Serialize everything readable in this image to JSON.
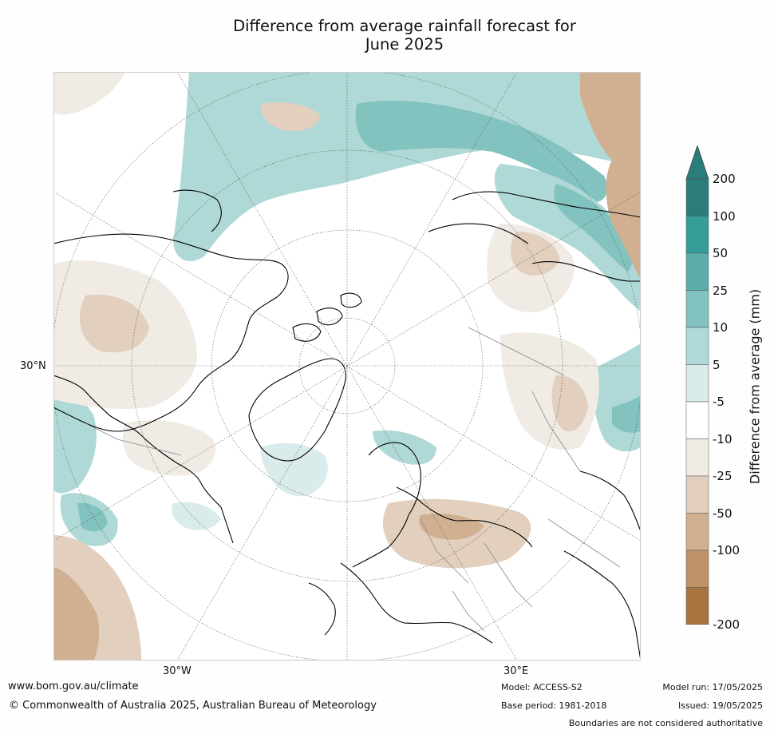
{
  "title_line1": "Difference from average rainfall forecast for",
  "title_line2": "June 2025",
  "map": {
    "graticule_labels": {
      "lat_left": "30°N",
      "lon_bottom_left": "30°W",
      "lon_bottom_right": "30°E"
    }
  },
  "legend": {
    "label": "Difference from average (mm)",
    "bins": [
      {
        "tick": "200",
        "color": "#2a7d78"
      },
      {
        "tick": "100",
        "color": "#359c98"
      },
      {
        "tick": "50",
        "color": "#5aadaa"
      },
      {
        "tick": "25",
        "color": "#82c2bf"
      },
      {
        "tick": "10",
        "color": "#afd9d7"
      },
      {
        "tick": "5",
        "color": "#d9eceb"
      },
      {
        "tick": "-5",
        "color": "#ffffff"
      },
      {
        "tick": "-10",
        "color": "#f0ebe4"
      },
      {
        "tick": "-25",
        "color": "#e2cfbe"
      },
      {
        "tick": "-50",
        "color": "#d0b091"
      },
      {
        "tick": "-100",
        "color": "#be9168"
      },
      {
        "tick": "-200",
        "color": "#a87440"
      }
    ],
    "extend_low_color": "#8c5a24",
    "ticks": [
      "200",
      "100",
      "50",
      "25",
      "10",
      "5",
      "-5",
      "-10",
      "-25",
      "-50",
      "-100",
      "-200"
    ]
  },
  "footer": {
    "url": "www.bom.gov.au/climate",
    "copyright": "© Commonwealth of Australia 2025, Australian Bureau of Meteorology",
    "model": "Model: ACCESS-S2",
    "base_period": "Base period: 1981-2018",
    "model_run": "Model run: 17/05/2025",
    "issued": "Issued: 19/05/2025",
    "disclaimer": "Boundaries are not considered authoritative"
  }
}
